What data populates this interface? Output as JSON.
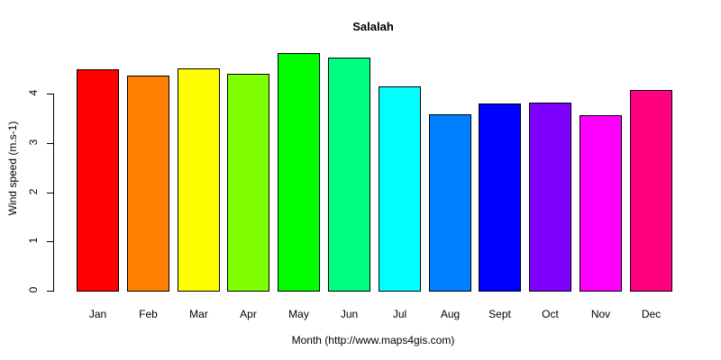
{
  "chart_data": {
    "type": "bar",
    "title": "Salalah",
    "xlabel": "Month (http://www.maps4gis.com)",
    "ylabel": "Wind speed (m.s-1)",
    "categories": [
      "Jan",
      "Feb",
      "Mar",
      "Apr",
      "May",
      "Jun",
      "Jul",
      "Aug",
      "Sept",
      "Oct",
      "Nov",
      "Dec"
    ],
    "values": [
      4.49,
      4.37,
      4.51,
      4.4,
      4.82,
      4.73,
      4.15,
      3.58,
      3.8,
      3.82,
      3.56,
      4.07
    ],
    "colors": [
      "#ff0000",
      "#ff8000",
      "#ffff00",
      "#80ff00",
      "#00ff00",
      "#00ff80",
      "#00ffff",
      "#0080ff",
      "#0000ff",
      "#8000ff",
      "#ff00ff",
      "#ff0080"
    ],
    "yticks": [
      "0",
      "1",
      "2",
      "3",
      "4"
    ],
    "ylim": [
      0,
      4.9
    ],
    "grid": false,
    "legend": "none"
  }
}
